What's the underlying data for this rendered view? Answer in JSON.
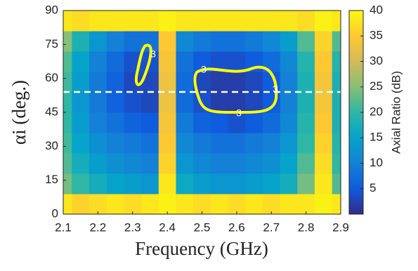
{
  "chart_data": {
    "type": "heatmap",
    "xlabel": "Frequency (GHz)",
    "ylabel": "αi (deg.)",
    "colorbar_label": "Axial Ratio (dB)",
    "x": [
      2.1,
      2.15,
      2.2,
      2.25,
      2.3,
      2.35,
      2.4,
      2.45,
      2.5,
      2.55,
      2.6,
      2.65,
      2.7,
      2.75,
      2.8,
      2.85,
      2.9
    ],
    "y": [
      4.5,
      13.5,
      22.5,
      31.5,
      40.5,
      49.5,
      58.5,
      67.5,
      76.5,
      85.5
    ],
    "values": [
      [
        38,
        36,
        37,
        38,
        37,
        38,
        39,
        38,
        37,
        38,
        37,
        38,
        37,
        38,
        38,
        39,
        38
      ],
      [
        24,
        20,
        17,
        15,
        14,
        13,
        38,
        16,
        14,
        13,
        13,
        14,
        15,
        17,
        24,
        38,
        22
      ],
      [
        22,
        17,
        14,
        12,
        11,
        10,
        36,
        13,
        11,
        10,
        10,
        11,
        12,
        15,
        22,
        37,
        20
      ],
      [
        21,
        15,
        12,
        10,
        9,
        8,
        35,
        11,
        9,
        8,
        8,
        9,
        10,
        13,
        20,
        36,
        19
      ],
      [
        20,
        14,
        10,
        8,
        6,
        5,
        34,
        9,
        6,
        5,
        4,
        5,
        7,
        11,
        19,
        35,
        18
      ],
      [
        20,
        13,
        9,
        6,
        4,
        3,
        33,
        7,
        4,
        2,
        2,
        3,
        5,
        10,
        18,
        34,
        18
      ],
      [
        21,
        14,
        9,
        6,
        3,
        3,
        33,
        7,
        3,
        2,
        2,
        3,
        5,
        10,
        18,
        34,
        18
      ],
      [
        22,
        15,
        10,
        7,
        4,
        4,
        34,
        8,
        5,
        4,
        4,
        5,
        7,
        11,
        19,
        35,
        19
      ],
      [
        25,
        18,
        13,
        10,
        8,
        8,
        35,
        11,
        9,
        8,
        8,
        9,
        11,
        14,
        22,
        36,
        22
      ],
      [
        38,
        37,
        38,
        38,
        38,
        38,
        39,
        38,
        38,
        38,
        38,
        38,
        38,
        38,
        37,
        39,
        38
      ]
    ],
    "xlim": [
      2.1,
      2.9
    ],
    "xticks": [
      {
        "value": 2.1,
        "label": "2.1"
      },
      {
        "value": 2.2,
        "label": "2.2"
      },
      {
        "value": 2.3,
        "label": "2.3"
      },
      {
        "value": 2.4,
        "label": "2.4"
      },
      {
        "value": 2.5,
        "label": "2.5"
      },
      {
        "value": 2.6,
        "label": "2.6"
      },
      {
        "value": 2.7,
        "label": "2.7"
      },
      {
        "value": 2.8,
        "label": "2.8"
      },
      {
        "value": 2.9,
        "label": "2.9"
      }
    ],
    "ylim": [
      0,
      90
    ],
    "yticks": [
      0,
      15,
      30,
      45,
      60,
      75,
      90
    ],
    "clim": [
      0,
      40
    ],
    "cticks": [
      5,
      10,
      15,
      20,
      25,
      30,
      35,
      40
    ],
    "colormap": [
      "#352a87",
      "#0f5cdd",
      "#1481d6",
      "#06a4ca",
      "#2eb7a4",
      "#87bf77",
      "#d1bb59",
      "#fec832",
      "#f9fb0e"
    ],
    "contour": {
      "level": 3,
      "color": "#ffff00"
    },
    "hline": 54
  }
}
